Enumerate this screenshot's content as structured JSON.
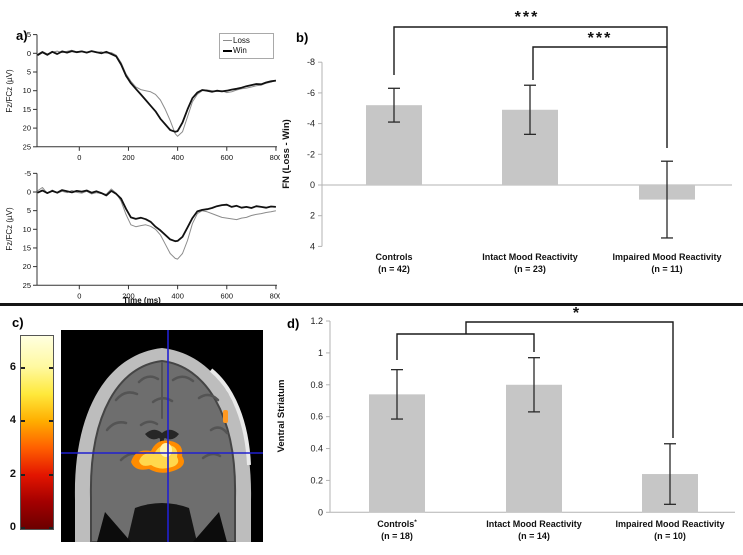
{
  "figure": {
    "panel_labels": [
      "a)",
      "b)",
      "c)",
      "d)"
    ]
  },
  "colors": {
    "bar_fill": "#c6c6c6",
    "loss_line": "#8c8c8c",
    "win_line": "#111111",
    "axis_gray": "#b3b3b3",
    "crosshair_blue": "#2020cf",
    "error_bar": "#2a2a2a"
  },
  "colorbar": {
    "ticks": [
      "0",
      "2",
      "4",
      "6"
    ],
    "tick_values": [
      0,
      2,
      4,
      6
    ],
    "range": [
      0,
      7.3
    ]
  },
  "chart_data": [
    {
      "id": "erp_top",
      "type": "line",
      "panel": "a",
      "ylabel": "Fz/FCz (µV)",
      "xlabel": "",
      "x_ticks": [
        0,
        200,
        400,
        600,
        800
      ],
      "y_ticks": [
        -5,
        0,
        5,
        10,
        15,
        20,
        25
      ],
      "y_inverted": true,
      "xlim": [
        -180,
        800
      ],
      "ylim": [
        -5,
        25
      ],
      "legend": [
        "Loss",
        "Win"
      ],
      "x": [
        -170,
        -150,
        -130,
        -110,
        -90,
        -70,
        -50,
        -30,
        -10,
        10,
        30,
        50,
        70,
        90,
        110,
        130,
        150,
        170,
        190,
        210,
        230,
        250,
        270,
        290,
        310,
        330,
        350,
        370,
        390,
        400,
        420,
        440,
        460,
        480,
        500,
        520,
        540,
        560,
        580,
        600,
        620,
        640,
        660,
        680,
        700,
        720,
        740,
        760,
        780,
        800
      ],
      "series": [
        {
          "name": "Loss",
          "values": [
            0.3,
            -0.5,
            0.2,
            -0.3,
            -0.6,
            -0.2,
            -0.5,
            -0.8,
            -0.4,
            -0.6,
            -0.3,
            -0.5,
            -0.2,
            -0.4,
            0,
            -0.2,
            0.5,
            2.5,
            5.5,
            7.5,
            9,
            9.7,
            10,
            10.3,
            11,
            12.5,
            15,
            18,
            21.5,
            22.2,
            21,
            17,
            13,
            11,
            10,
            9.8,
            10,
            10.2,
            10,
            10.5,
            10.3,
            9.8,
            9.5,
            9.3,
            9,
            8.7,
            8.5,
            8,
            7.7,
            7.2
          ]
        },
        {
          "name": "Win",
          "values": [
            0.5,
            -0.3,
            0.4,
            -0.4,
            0.2,
            -0.5,
            -0.2,
            -0.6,
            -0.3,
            -0.5,
            -0.2,
            -0.6,
            -0.3,
            0,
            -0.4,
            0.2,
            0.8,
            3,
            6,
            8,
            9.5,
            11,
            12.5,
            14,
            15.5,
            17.5,
            19,
            20.5,
            21,
            20.8,
            18.5,
            15,
            12,
            10.5,
            9.8,
            10,
            10.3,
            10,
            10.2,
            10,
            9.7,
            9.5,
            9.2,
            8.8,
            8.5,
            8.2,
            8.3,
            7.8,
            7.5,
            7.3
          ]
        }
      ]
    },
    {
      "id": "erp_bottom",
      "type": "line",
      "panel": "a",
      "ylabel": "Fz/FCz (µV)",
      "xlabel": "Time (ms)",
      "x_ticks": [
        0,
        200,
        400,
        600,
        800
      ],
      "y_ticks": [
        -5,
        0,
        5,
        10,
        15,
        20,
        25
      ],
      "y_inverted": true,
      "xlim": [
        -180,
        800
      ],
      "ylim": [
        -5,
        25
      ],
      "legend": [
        "Loss",
        "Win"
      ],
      "x": [
        -170,
        -150,
        -130,
        -110,
        -90,
        -70,
        -50,
        -30,
        -10,
        10,
        30,
        50,
        70,
        90,
        110,
        130,
        150,
        170,
        190,
        210,
        230,
        250,
        270,
        290,
        310,
        330,
        350,
        370,
        390,
        400,
        420,
        440,
        460,
        480,
        500,
        520,
        540,
        560,
        580,
        600,
        620,
        640,
        660,
        680,
        700,
        720,
        740,
        760,
        780,
        800
      ],
      "series": [
        {
          "name": "Loss",
          "values": [
            -0.3,
            -1.2,
            0.4,
            -0.5,
            0.3,
            -0.2,
            0.2,
            -0.4,
            0.1,
            0.3,
            -0.2,
            0.5,
            0.2,
            0.4,
            0.6,
            -0.8,
            0.3,
            2.5,
            6,
            8.8,
            9.3,
            9,
            8.8,
            9.2,
            10,
            11.5,
            14,
            16.5,
            17.8,
            18,
            16.5,
            13,
            8.5,
            5.8,
            5,
            5.3,
            5.8,
            6.3,
            6.8,
            7,
            7.2,
            7.4,
            7,
            6.8,
            6.3,
            6,
            5.8,
            5.5,
            5.3,
            5
          ]
        },
        {
          "name": "Win",
          "values": [
            0.2,
            -0.4,
            0.3,
            -0.3,
            0.2,
            -0.5,
            -0.2,
            0.1,
            -0.3,
            -0.1,
            -0.4,
            0.2,
            -0.2,
            0.3,
            0.9,
            -0.3,
            0.5,
            1.8,
            4.5,
            6.8,
            7.2,
            6.9,
            7.3,
            8,
            9.3,
            10.3,
            11.5,
            12.7,
            13.2,
            13.1,
            12,
            9.5,
            7,
            5.2,
            4.8,
            4.6,
            4.3,
            3.8,
            3.5,
            3.4,
            4,
            3.7,
            4.2,
            4,
            4.3,
            3.8,
            4,
            4.2,
            3.9,
            4
          ]
        }
      ]
    },
    {
      "id": "fn_amplitude",
      "type": "bar",
      "panel": "b",
      "ylabel": "FN (Loss - Win)",
      "y_ticks": [
        -8,
        -6,
        -4,
        -2,
        0,
        2,
        4
      ],
      "y_tick_labels": [
        "-8",
        "-6",
        "-4",
        "-2",
        "0",
        "2",
        "4"
      ],
      "y_inverted": true,
      "ylim": [
        -8,
        4
      ],
      "categories": [
        {
          "name": "Controls",
          "sup": "",
          "n": "(n = 42)"
        },
        {
          "name": "Intact Mood Reactivity",
          "sup": "",
          "n": "(n = 23)"
        },
        {
          "name": "Impaired Mood Reactivity",
          "sup": "",
          "n": "(n = 11)"
        }
      ],
      "values": [
        -5.2,
        -4.9,
        0.95
      ],
      "errors": [
        1.1,
        1.6,
        2.5
      ],
      "significance": [
        {
          "label": "***",
          "between": [
            "Controls",
            "Impaired Mood Reactivity"
          ]
        },
        {
          "label": "***",
          "between": [
            "Intact Mood Reactivity",
            "Impaired Mood Reactivity"
          ]
        }
      ]
    },
    {
      "id": "ventral_striatum",
      "type": "bar",
      "panel": "d",
      "ylabel": "Ventral Striatum",
      "y_ticks": [
        0,
        0.2,
        0.4,
        0.6,
        0.8,
        1,
        1.2
      ],
      "y_tick_labels": [
        "0",
        "0.2",
        "0.4",
        "0.6",
        "0.8",
        "1",
        "1.2"
      ],
      "y_inverted": false,
      "ylim": [
        0,
        1.2
      ],
      "categories": [
        {
          "name": "Controls",
          "sup": "*",
          "n": "(n = 18)"
        },
        {
          "name": "Intact Mood Reactivity",
          "sup": "",
          "n": "(n = 14)"
        },
        {
          "name": "Impaired Mood Reactivity",
          "sup": "",
          "n": "(n = 10)"
        }
      ],
      "values": [
        0.74,
        0.8,
        0.24
      ],
      "errors": [
        0.155,
        0.17,
        0.19
      ],
      "significance": [
        {
          "label": "*",
          "between": [
            "Controls + Intact Mood Reactivity",
            "Impaired Mood Reactivity"
          ]
        }
      ]
    }
  ]
}
